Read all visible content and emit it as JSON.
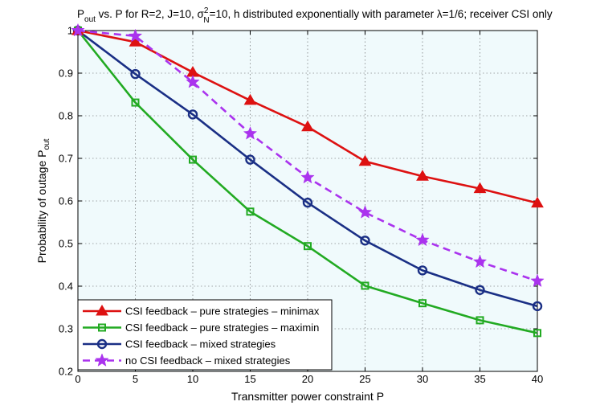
{
  "chart_data": {
    "type": "line",
    "title": {
      "p1": "P",
      "p1_sub": "out",
      "p2": " vs. P for R=2, J=10, σ",
      "p2_sup": "2",
      "p2_sub": "N",
      "p3": "=10, h distributed exponentially with parameter λ=1/6; receiver CSI only"
    },
    "xlabel": "Transmitter power constraint P",
    "ylabel": {
      "main": "Probability of outage P",
      "sub": "out"
    },
    "xlim": [
      0,
      40
    ],
    "ylim": [
      0.2,
      1
    ],
    "xticks": [
      0,
      5,
      10,
      15,
      20,
      25,
      30,
      35,
      40
    ],
    "yticks": [
      0.2,
      0.3,
      0.4,
      0.5,
      0.6,
      0.7,
      0.8,
      0.9,
      1
    ],
    "ytick_labels": [
      "0.2",
      "0.3",
      "0.4",
      "0.5",
      "0.6",
      "0.7",
      "0.8",
      "0.9",
      "1"
    ],
    "grid": true,
    "legend_position": "bottom-left",
    "x": [
      0,
      5,
      10,
      15,
      20,
      25,
      30,
      35,
      40
    ],
    "series": [
      {
        "name": "CSI feedback – pure strategies – minimax",
        "color": "#dd1111",
        "marker": "triangle",
        "dash": false,
        "values": [
          1.0,
          0.973,
          0.902,
          0.836,
          0.774,
          0.693,
          0.658,
          0.629,
          0.595
        ]
      },
      {
        "name": "CSI feedback – pure strategies – maximin",
        "color": "#22aa22",
        "marker": "square",
        "dash": false,
        "values": [
          1.0,
          0.831,
          0.697,
          0.575,
          0.494,
          0.401,
          0.36,
          0.32,
          0.29
        ]
      },
      {
        "name": "CSI feedback – mixed strategies",
        "color": "#1a2f85",
        "marker": "circle",
        "dash": false,
        "values": [
          1.0,
          0.898,
          0.803,
          0.697,
          0.596,
          0.507,
          0.437,
          0.391,
          0.353
        ]
      },
      {
        "name": "no CSI feedback – mixed strategies",
        "color": "#aa33ee",
        "marker": "star",
        "dash": true,
        "values": [
          1.0,
          0.987,
          0.879,
          0.758,
          0.655,
          0.573,
          0.508,
          0.457,
          0.412
        ]
      }
    ]
  }
}
